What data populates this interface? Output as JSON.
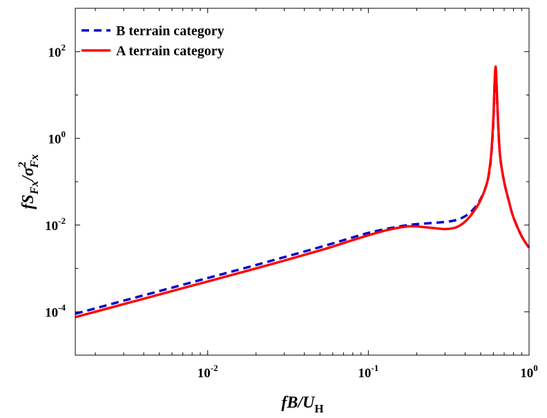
{
  "chart_data": {
    "type": "line",
    "xscale": "log",
    "yscale": "log",
    "xlim": [
      0.0015,
      1.0
    ],
    "ylim": [
      1e-05,
      1000
    ],
    "grid": false,
    "legend_position": "top-left",
    "xlabel": {
      "main": "fB/U",
      "sub": "H"
    },
    "ylabel": {
      "base": "fS",
      "sub1": "Fx",
      "slash": "/σ",
      "sup": "2",
      "sub2": "Fx"
    },
    "xticks": [
      {
        "value": 0.01,
        "base": "10",
        "exp": "-2"
      },
      {
        "value": 0.1,
        "base": "10",
        "exp": "-1"
      },
      {
        "value": 1.0,
        "base": "10",
        "exp": "0"
      }
    ],
    "yticks": [
      {
        "value": 0.0001,
        "base": "10",
        "exp": "-4"
      },
      {
        "value": 0.01,
        "base": "10",
        "exp": "-2"
      },
      {
        "value": 1,
        "base": "10",
        "exp": "0"
      },
      {
        "value": 100,
        "base": "10",
        "exp": "2"
      }
    ],
    "series": [
      {
        "name": "B terrain category",
        "color": "#0000cc",
        "style": "dashed",
        "x": [
          0.0015,
          0.002,
          0.003,
          0.005,
          0.01,
          0.02,
          0.05,
          0.08,
          0.1,
          0.13,
          0.17,
          0.2,
          0.25,
          0.3,
          0.35,
          0.4,
          0.45,
          0.5,
          0.55,
          0.58,
          0.6,
          0.61,
          0.62,
          0.63,
          0.64,
          0.66,
          0.7,
          0.75,
          0.8,
          0.9,
          1.0
        ],
        "y": [
          9e-05,
          0.00012,
          0.00018,
          0.0003,
          0.0006,
          0.0012,
          0.0031,
          0.0052,
          0.0066,
          0.0082,
          0.0098,
          0.0105,
          0.0112,
          0.0118,
          0.013,
          0.016,
          0.023,
          0.04,
          0.1,
          0.35,
          2.5,
          15,
          38,
          12,
          2.8,
          0.4,
          0.1,
          0.035,
          0.015,
          0.0055,
          0.003
        ]
      },
      {
        "name": "A terrain category",
        "color": "#ff0000",
        "style": "solid",
        "x": [
          0.0015,
          0.002,
          0.003,
          0.005,
          0.01,
          0.02,
          0.05,
          0.08,
          0.1,
          0.13,
          0.17,
          0.2,
          0.25,
          0.3,
          0.35,
          0.4,
          0.45,
          0.5,
          0.55,
          0.58,
          0.6,
          0.61,
          0.62,
          0.63,
          0.64,
          0.66,
          0.7,
          0.75,
          0.8,
          0.9,
          1.0
        ],
        "y": [
          7.5e-05,
          0.0001,
          0.00015,
          0.00025,
          0.0005,
          0.001,
          0.0026,
          0.0045,
          0.0058,
          0.0076,
          0.0092,
          0.0093,
          0.0086,
          0.0081,
          0.0088,
          0.012,
          0.02,
          0.038,
          0.1,
          0.4,
          3,
          18,
          45,
          13,
          3,
          0.4,
          0.1,
          0.035,
          0.015,
          0.0055,
          0.003
        ]
      }
    ]
  }
}
